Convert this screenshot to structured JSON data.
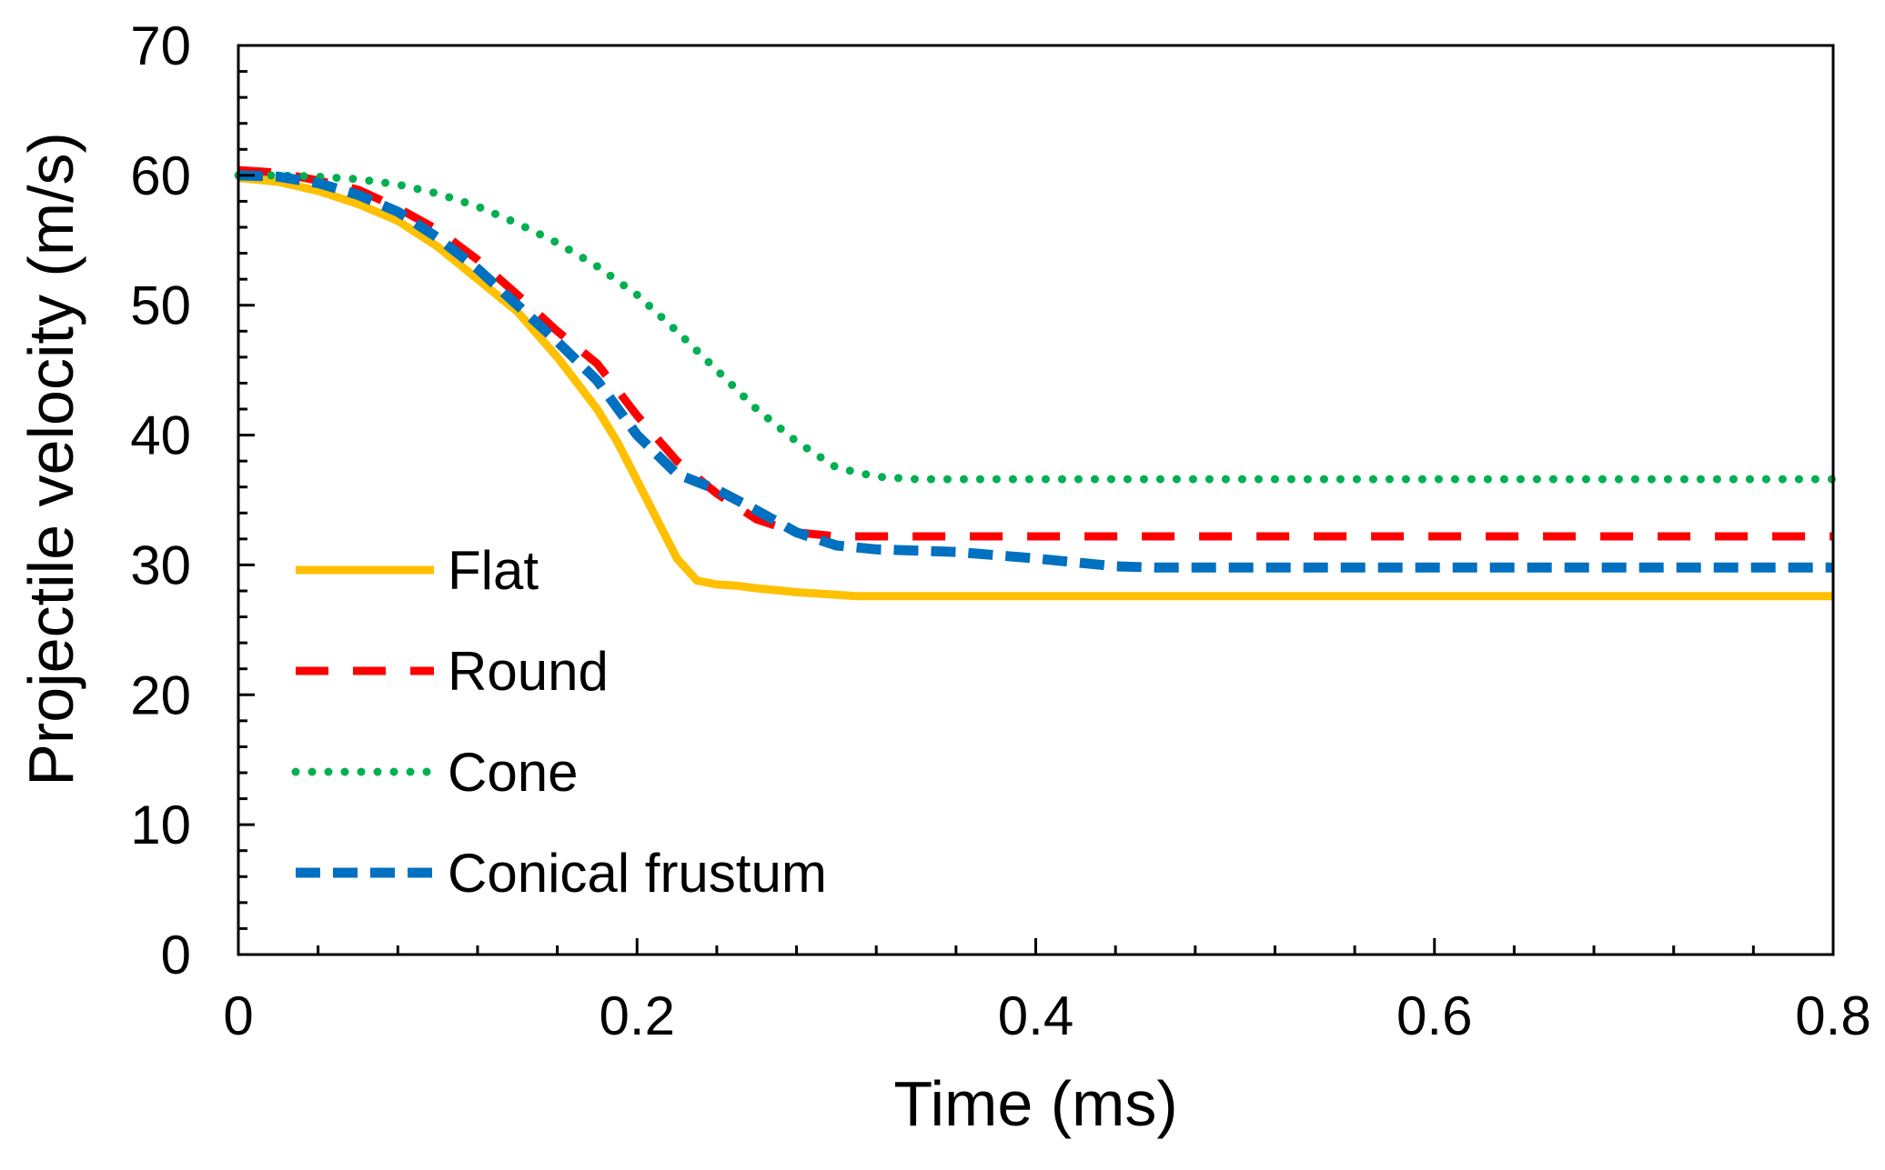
{
  "chart_data": {
    "type": "line",
    "title": "",
    "xlabel": "Time (ms)",
    "ylabel": "Projectile velocity (m/s)",
    "xlim": [
      0,
      0.8
    ],
    "ylim": [
      0,
      70
    ],
    "xticks": [
      0,
      0.2,
      0.4,
      0.6,
      0.8
    ],
    "xtick_labels": [
      "0",
      "0.2",
      "0.4",
      "0.6",
      "0.8"
    ],
    "xminor_step": 0.04,
    "yticks": [
      0,
      10,
      20,
      30,
      40,
      50,
      60,
      70
    ],
    "ytick_labels": [
      "0",
      "10",
      "20",
      "30",
      "40",
      "50",
      "60",
      "70"
    ],
    "yminor_step": 2,
    "grid": false,
    "legend_position": "bottom-left",
    "series": [
      {
        "name": "Flat",
        "color": "#FFC000",
        "style": "solid",
        "x": [
          0,
          0.02,
          0.04,
          0.06,
          0.08,
          0.1,
          0.12,
          0.14,
          0.16,
          0.18,
          0.19,
          0.2,
          0.21,
          0.22,
          0.23,
          0.24,
          0.25,
          0.26,
          0.28,
          0.3,
          0.31,
          0.35,
          0.4,
          0.5,
          0.6,
          0.7,
          0.8
        ],
        "y": [
          59.8,
          59.5,
          58.8,
          57.8,
          56.5,
          54.5,
          52.0,
          49.5,
          46.0,
          42.0,
          39.5,
          36.5,
          33.5,
          30.5,
          28.8,
          28.5,
          28.4,
          28.2,
          27.9,
          27.7,
          27.6,
          27.6,
          27.6,
          27.6,
          27.6,
          27.6,
          27.6
        ]
      },
      {
        "name": "Round",
        "color": "#FF0000",
        "style": "longdash",
        "x": [
          0,
          0.02,
          0.04,
          0.06,
          0.08,
          0.1,
          0.12,
          0.14,
          0.16,
          0.18,
          0.2,
          0.22,
          0.24,
          0.26,
          0.28,
          0.3,
          0.32,
          0.4,
          0.5,
          0.6,
          0.7,
          0.8
        ],
        "y": [
          60.4,
          60.2,
          59.6,
          58.9,
          57.5,
          55.8,
          53.5,
          50.8,
          48.0,
          45.5,
          41.5,
          38.0,
          35.5,
          33.5,
          32.5,
          32.2,
          32.2,
          32.2,
          32.2,
          32.2,
          32.2,
          32.2
        ]
      },
      {
        "name": "Cone",
        "color": "#00B050",
        "style": "dotted",
        "x": [
          0,
          0.02,
          0.04,
          0.06,
          0.08,
          0.1,
          0.12,
          0.14,
          0.16,
          0.18,
          0.2,
          0.22,
          0.24,
          0.26,
          0.28,
          0.3,
          0.32,
          0.34,
          0.36,
          0.4,
          0.5,
          0.6,
          0.7,
          0.8
        ],
        "y": [
          60.0,
          60.0,
          59.9,
          59.7,
          59.3,
          58.6,
          57.6,
          56.3,
          54.8,
          53.0,
          50.8,
          48.0,
          45.0,
          42.0,
          39.5,
          37.5,
          36.8,
          36.6,
          36.6,
          36.6,
          36.6,
          36.6,
          36.6,
          36.6
        ]
      },
      {
        "name": "Conical frustum",
        "color": "#0070C0",
        "style": "dash",
        "x": [
          0,
          0.02,
          0.04,
          0.06,
          0.08,
          0.1,
          0.12,
          0.14,
          0.16,
          0.18,
          0.2,
          0.21,
          0.22,
          0.24,
          0.26,
          0.28,
          0.3,
          0.32,
          0.36,
          0.4,
          0.44,
          0.46,
          0.5,
          0.6,
          0.7,
          0.8
        ],
        "y": [
          60.0,
          59.9,
          59.4,
          58.5,
          57.2,
          55.2,
          52.8,
          50.0,
          47.2,
          44.2,
          40.0,
          38.5,
          37.0,
          35.8,
          34.2,
          32.5,
          31.5,
          31.2,
          31.0,
          30.5,
          29.9,
          29.8,
          29.8,
          29.8,
          29.8,
          29.8
        ]
      }
    ]
  }
}
